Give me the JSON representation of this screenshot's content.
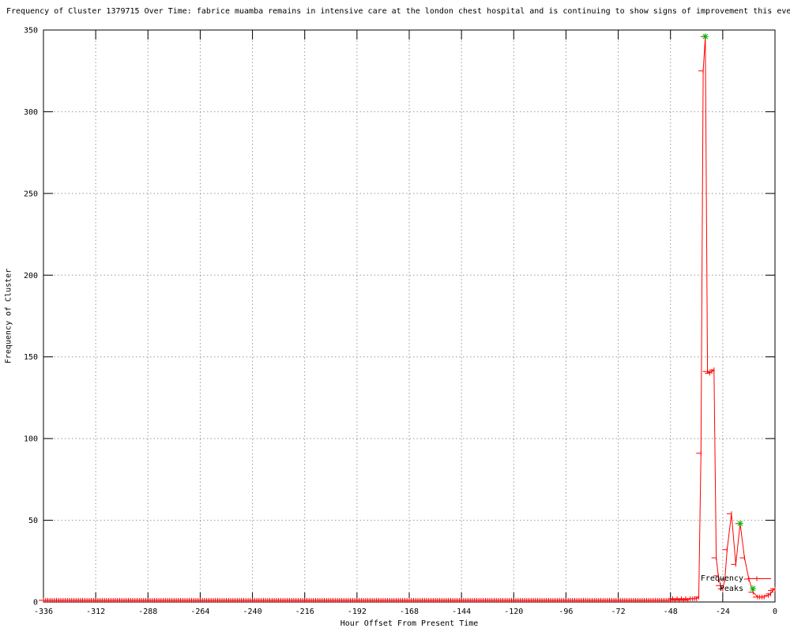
{
  "window": {
    "background": "#ffffff"
  },
  "chart_data": {
    "type": "line",
    "title": "Frequency of Cluster 1379715 Over Time: fabrice muamba remains in intensive care at the london chest hospital and is continuing to show signs of improvement this eve",
    "xlabel": "Hour Offset From Present Time",
    "ylabel": "Frequency of Cluster",
    "xlim": [
      -336,
      0
    ],
    "ylim": [
      0,
      350
    ],
    "xticks": [
      -336,
      -312,
      -288,
      -264,
      -240,
      -216,
      -192,
      -168,
      -144,
      -120,
      -96,
      -72,
      -48,
      -24,
      0
    ],
    "yticks": [
      0,
      50,
      100,
      150,
      200,
      250,
      300,
      350
    ],
    "grid": true,
    "legend_position": "bottom-right-inside",
    "colors": {
      "frequency_line": "#ff0000",
      "peaks_marker": "#00b400",
      "grid": "#999999",
      "border": "#000000",
      "text": "#000000"
    },
    "series": [
      {
        "name": "Frequency",
        "style": "linespoints",
        "marker": "plus",
        "color": "#ff0000",
        "baseline": {
          "from": -336,
          "to": -49,
          "value": 1
        },
        "points": [
          [
            -48,
            1
          ],
          [
            -47,
            2
          ],
          [
            -46,
            1
          ],
          [
            -45,
            2
          ],
          [
            -44,
            1
          ],
          [
            -43,
            2
          ],
          [
            -42,
            1
          ],
          [
            -41,
            2
          ],
          [
            -40,
            1
          ],
          [
            -39,
            2
          ],
          [
            -38,
            2
          ],
          [
            -37,
            2
          ],
          [
            -36,
            2
          ],
          [
            -35,
            3
          ],
          [
            -34,
            91
          ],
          [
            -33,
            325
          ],
          [
            -32,
            346
          ],
          [
            -31,
            141
          ],
          [
            -30,
            140
          ],
          [
            -29,
            141
          ],
          [
            -28,
            142
          ],
          [
            -27,
            27
          ],
          [
            -26,
            16
          ],
          [
            -25,
            10
          ],
          [
            -24,
            8
          ],
          [
            -23,
            14
          ],
          [
            -22,
            32
          ],
          [
            -20,
            54
          ],
          [
            -18,
            23
          ],
          [
            -16,
            48
          ],
          [
            -14,
            27
          ],
          [
            -12,
            14
          ],
          [
            -10,
            6
          ],
          [
            -8,
            3
          ],
          [
            -7,
            3
          ],
          [
            -6,
            3
          ],
          [
            -5,
            3
          ],
          [
            -3,
            4
          ],
          [
            -2,
            5
          ],
          [
            -1,
            7
          ],
          [
            0,
            8
          ]
        ]
      },
      {
        "name": "Peaks",
        "style": "points",
        "marker": "star",
        "color": "#00b400",
        "points": [
          [
            -32,
            346
          ],
          [
            -16,
            48
          ]
        ]
      }
    ]
  }
}
